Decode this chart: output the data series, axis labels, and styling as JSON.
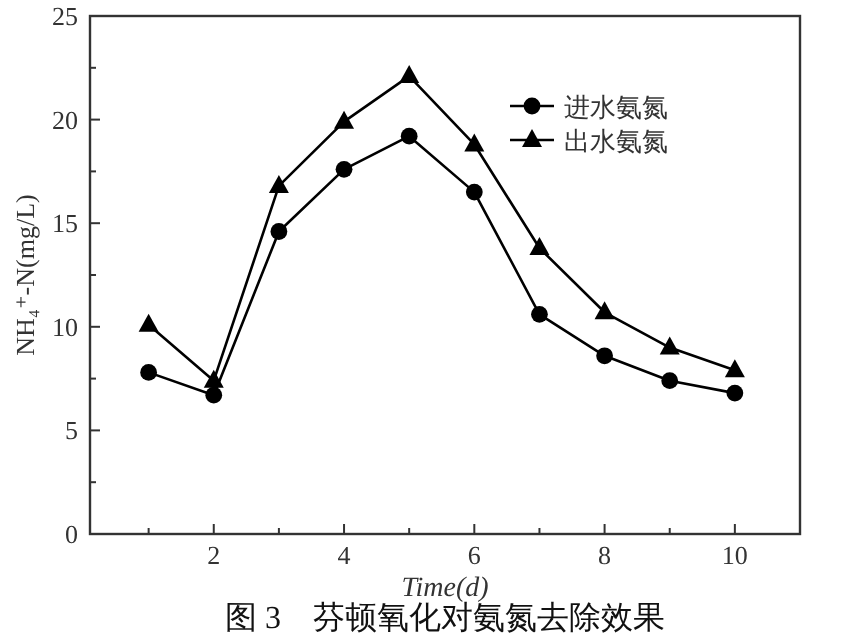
{
  "chart_data": {
    "type": "line",
    "title": "图 3　芬顿氧化对氨氮去除效果",
    "xlabel": "Time(d)",
    "ylabel": "NH₄⁺-N(mg/L)",
    "x": [
      1,
      2,
      3,
      4,
      5,
      6,
      7,
      8,
      9,
      10
    ],
    "series": [
      {
        "name": "进水氨氮",
        "color": "#000000",
        "marker": "circle",
        "values": [
          7.8,
          6.7,
          14.6,
          17.6,
          19.2,
          16.5,
          10.6,
          8.6,
          7.4,
          6.8
        ]
      },
      {
        "name": "出水氨氮",
        "color": "#000000",
        "marker": "triangle",
        "values": [
          10.1,
          7.4,
          16.8,
          19.9,
          22.1,
          18.8,
          13.8,
          10.7,
          9.0,
          7.9
        ]
      }
    ],
    "xlim": [
      0.1,
      11
    ],
    "xticks": [
      {
        "value": 1,
        "label": null
      },
      2,
      {
        "value": 3,
        "label": null
      },
      4,
      {
        "value": 5,
        "label": null
      },
      6,
      {
        "value": 7,
        "label": null
      },
      8,
      {
        "value": 9,
        "label": null
      },
      10
    ],
    "ylim": [
      0,
      25
    ],
    "yticks": [
      0,
      {
        "value": 2.5,
        "label": null
      },
      5,
      {
        "value": 7.5,
        "label": null
      },
      10,
      {
        "value": 12.5,
        "label": null
      },
      15,
      {
        "value": 17.5,
        "label": null
      },
      20,
      {
        "value": 22.5,
        "label": null
      },
      25
    ],
    "legend": "top right",
    "grid": false,
    "line_style": "solid"
  }
}
